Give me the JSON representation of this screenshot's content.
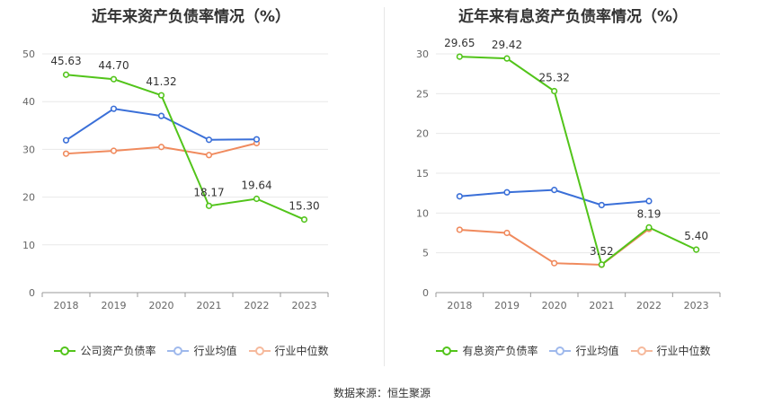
{
  "source_label": "数据来源：恒生聚源",
  "colors": {
    "company": "#52c41a",
    "avg": "#3a6fd8",
    "median": "#f08a5d",
    "grid": "#e8e8e8",
    "axis": "#999999"
  },
  "chart_data": [
    {
      "type": "line",
      "title": "近年来资产负债率情况（%）",
      "categories": [
        "2018",
        "2019",
        "2020",
        "2021",
        "2022",
        "2023"
      ],
      "ylim": [
        0,
        50
      ],
      "yticks": [
        "0",
        "10",
        "20",
        "30",
        "40",
        "50"
      ],
      "legend_position": "bottom",
      "series": [
        {
          "name": "公司资产负债率",
          "key": "company",
          "values": [
            45.63,
            44.7,
            41.32,
            18.17,
            19.64,
            15.3
          ],
          "labels": [
            "45.63",
            "44.70",
            "41.32",
            "18.17",
            "19.64",
            "15.30"
          ]
        },
        {
          "name": "行业均值",
          "key": "avg",
          "values": [
            31.9,
            38.5,
            37.0,
            32.0,
            32.1,
            null
          ]
        },
        {
          "name": "行业中位数",
          "key": "median",
          "values": [
            29.1,
            29.7,
            30.5,
            28.8,
            31.3,
            null
          ]
        }
      ]
    },
    {
      "type": "line",
      "title": "近年来有息资产负债率情况（%）",
      "categories": [
        "2018",
        "2019",
        "2020",
        "2021",
        "2022",
        "2023"
      ],
      "ylim": [
        0,
        30
      ],
      "yticks": [
        "0",
        "5",
        "10",
        "15",
        "20",
        "25",
        "30"
      ],
      "legend_position": "bottom",
      "series": [
        {
          "name": "有息资产负债率",
          "key": "company",
          "values": [
            29.65,
            29.42,
            25.32,
            3.52,
            8.19,
            5.4
          ],
          "labels": [
            "29.65",
            "29.42",
            "25.32",
            "3.52",
            "8.19",
            "5.40"
          ]
        },
        {
          "name": "行业均值",
          "key": "avg",
          "values": [
            12.1,
            12.6,
            12.9,
            11.0,
            11.5,
            null
          ]
        },
        {
          "name": "行业中位数",
          "key": "median",
          "values": [
            7.9,
            7.5,
            3.7,
            3.5,
            8.0,
            null
          ]
        }
      ]
    }
  ]
}
